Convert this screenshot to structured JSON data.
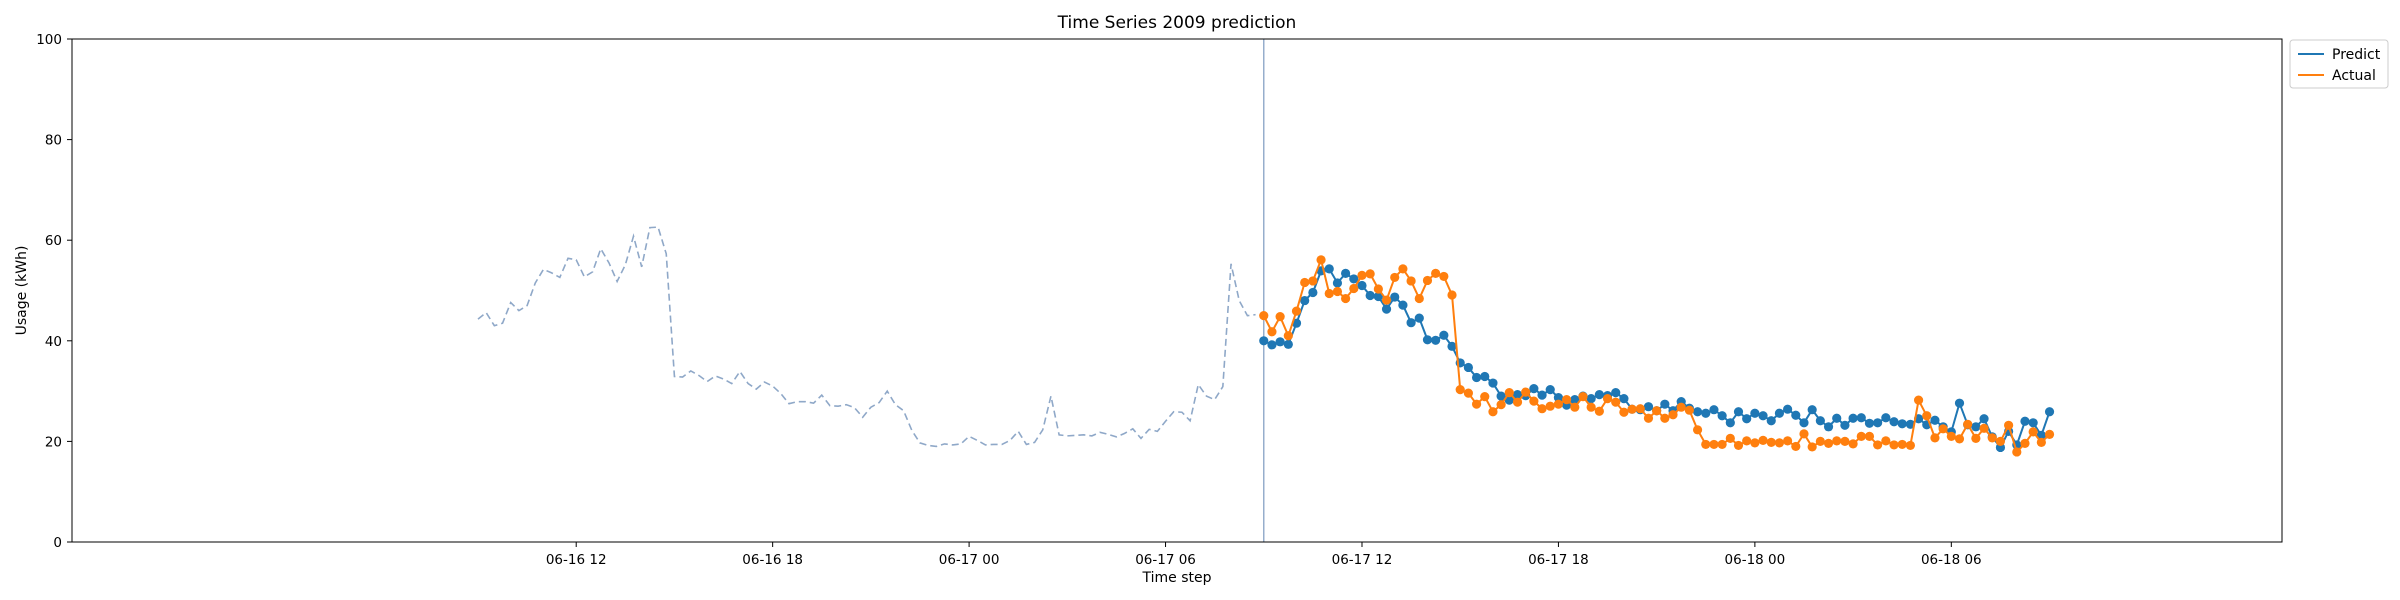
{
  "chart_data": {
    "type": "line",
    "title": "Time Series 2009 prediction",
    "xlabel": "Time step",
    "ylabel": "Usage (kWh)",
    "ylim": [
      0,
      100
    ],
    "yticks": [
      "0",
      "20",
      "40",
      "60",
      "80",
      "100"
    ],
    "xlim_hours": [
      -3.4,
      64.1
    ],
    "xticks": [
      {
        "label": "06-16 12",
        "hour": 12
      },
      {
        "label": "06-16 18",
        "hour": 18
      },
      {
        "label": "06-17 00",
        "hour": 24
      },
      {
        "label": "06-17 06",
        "hour": 30
      },
      {
        "label": "06-17 12",
        "hour": 36
      },
      {
        "label": "06-17 18",
        "hour": 42
      },
      {
        "label": "06-18 00",
        "hour": 48
      },
      {
        "label": "06-18 06",
        "hour": 54
      }
    ],
    "x_start_hour": 9.0,
    "x_step_hours": 0.25,
    "forecast_start_hour": 33.0,
    "grid": false,
    "legend_position": "upper-right-outside",
    "colors": {
      "history": "#8fa8c8",
      "predict": "#1f77b4",
      "actual": "#ff7f0e",
      "vline": "#8fa8c8"
    },
    "history": [
      44.3,
      45.6,
      43.0,
      43.5,
      47.6,
      46.0,
      47.0,
      51.5,
      54.2,
      53.5,
      52.6,
      56.4,
      56.1,
      52.7,
      53.7,
      58.3,
      55.5,
      51.8,
      55.1,
      60.8,
      54.7,
      62.5,
      62.6,
      57.3,
      32.9,
      32.8,
      34.0,
      33.1,
      31.9,
      33.0,
      32.4,
      31.5,
      33.9,
      31.5,
      30.4,
      31.8,
      31.0,
      29.5,
      27.5,
      27.9,
      27.9,
      27.6,
      29.2,
      27.1,
      27.0,
      27.3,
      26.7,
      24.8,
      26.8,
      27.7,
      30.0,
      27.3,
      26.1,
      22.2,
      19.7,
      19.2,
      19.0,
      19.5,
      19.3,
      19.5,
      21.0,
      20.2,
      19.3,
      19.4,
      19.4,
      20.2,
      22.0,
      19.4,
      19.8,
      22.3,
      29.0,
      21.3,
      21.1,
      21.2,
      21.3,
      21.1,
      21.8,
      21.4,
      20.9,
      21.6,
      22.5,
      20.6,
      22.4,
      22.0,
      24.0,
      25.9,
      25.8,
      24.1,
      31.3,
      29.0,
      28.3,
      30.9,
      55.3,
      48.0,
      45.0,
      45.2
    ],
    "series": [
      {
        "name": "Predict",
        "values": [
          40.0,
          39.2,
          39.8,
          39.3,
          43.5,
          48.0,
          49.6,
          53.9,
          54.3,
          51.5,
          53.4,
          52.3,
          51.0,
          49.0,
          48.8,
          46.3,
          48.7,
          47.1,
          43.6,
          44.5,
          40.2,
          40.1,
          41.1,
          38.9,
          35.6,
          34.7,
          32.7,
          32.9,
          31.6,
          29.0,
          28.2,
          29.3,
          29.1,
          30.5,
          29.2,
          30.3,
          28.7,
          27.2,
          28.3,
          29.0,
          28.5,
          29.3,
          29.1,
          29.7,
          28.5,
          26.4,
          26.3,
          26.9,
          26.1,
          27.4,
          26.1,
          27.9,
          26.6,
          25.9,
          25.6,
          26.3,
          25.1,
          23.7,
          25.9,
          24.5,
          25.6,
          25.1,
          24.1,
          25.6,
          26.4,
          25.2,
          23.7,
          26.3,
          24.1,
          22.9,
          24.6,
          23.2,
          24.6,
          24.7,
          23.6,
          23.7,
          24.7,
          23.9,
          23.5,
          23.4,
          24.5,
          23.3,
          24.2,
          22.9,
          21.9,
          27.6,
          23.3,
          22.9,
          24.5,
          20.9,
          18.8,
          22.0,
          19.3,
          24.0,
          23.7,
          21.2,
          25.9
        ]
      },
      {
        "name": "Actual",
        "values": [
          45.0,
          41.8,
          44.8,
          41.0,
          45.9,
          51.6,
          51.9,
          56.1,
          49.4,
          49.8,
          48.4,
          50.4,
          53.0,
          53.3,
          50.3,
          48.1,
          52.6,
          54.3,
          51.9,
          48.4,
          52.0,
          53.4,
          52.8,
          49.1,
          30.3,
          29.6,
          27.4,
          28.9,
          25.9,
          27.3,
          29.7,
          27.8,
          29.8,
          28.0,
          26.5,
          27.0,
          27.4,
          28.3,
          26.8,
          28.9,
          26.8,
          26.0,
          28.5,
          27.8,
          25.8,
          26.4,
          26.5,
          24.6,
          26.1,
          24.6,
          25.3,
          26.8,
          26.2,
          22.3,
          19.4,
          19.4,
          19.4,
          20.6,
          19.2,
          20.1,
          19.7,
          20.2,
          19.8,
          19.7,
          20.1,
          19.0,
          21.5,
          18.9,
          20.0,
          19.6,
          20.1,
          20.0,
          19.5,
          21.0,
          21.0,
          19.3,
          20.1,
          19.3,
          19.4,
          19.2,
          28.2,
          25.1,
          20.7,
          22.5,
          21.0,
          20.5,
          23.4,
          20.6,
          22.6,
          20.7,
          20.0,
          23.2,
          17.9,
          19.6,
          21.9,
          19.8,
          21.4
        ]
      }
    ]
  }
}
